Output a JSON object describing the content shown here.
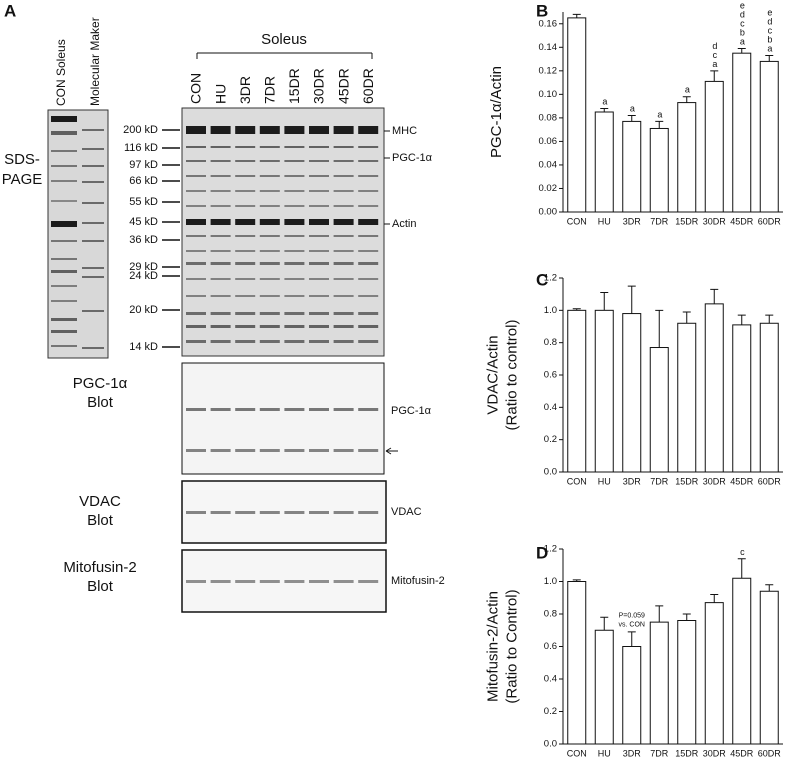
{
  "panel_labels": [
    "A",
    "B",
    "C",
    "D"
  ],
  "gel": {
    "lane_titles": [
      "CON Soleus",
      "Molecular Maker"
    ],
    "sds_label": [
      "SDS-",
      "PAGE"
    ],
    "marker_labels": [
      "200 kD",
      "116 kD",
      "97 kD",
      "66 kD",
      "55 kD",
      "45 kD",
      "36 kD",
      "29 kD",
      "24 kD",
      "20 kD",
      "14 kD"
    ],
    "group_label": "Soleus",
    "lanes": [
      "CON",
      "HU",
      "3DR",
      "7DR",
      "15DR",
      "30DR",
      "45DR",
      "60DR"
    ],
    "band_labels": [
      "MHC",
      "PGC-1α",
      "Actin"
    ],
    "blots": [
      {
        "title": [
          "PGC-1α",
          "Blot"
        ],
        "band": "PGC-1α"
      },
      {
        "title": [
          "VDAC",
          "Blot"
        ],
        "band": "VDAC"
      },
      {
        "title": [
          "Mitofusin-2",
          "Blot"
        ],
        "band": "Mitofusin-2"
      }
    ]
  },
  "chart_data": [
    {
      "type": "bar",
      "ylabel": [
        "PGC-1α/Actin"
      ],
      "color": "#ffffff",
      "categories": [
        "CON",
        "HU",
        "3DR",
        "7DR",
        "15DR",
        "30DR",
        "45DR",
        "60DR"
      ],
      "values": [
        0.165,
        0.085,
        0.077,
        0.071,
        0.093,
        0.111,
        0.135,
        0.128
      ],
      "error": [
        0.003,
        0.003,
        0.005,
        0.006,
        0.005,
        0.009,
        0.004,
        0.005
      ],
      "annotations": [
        null,
        "a",
        "a",
        "a",
        "a",
        "dca",
        "edcba",
        "edcba"
      ],
      "ylim": [
        0,
        0.17
      ],
      "yticks": [
        {
          "value": 0,
          "label": "0.00"
        },
        0.02,
        0.04,
        0.06,
        0.08,
        {
          "value": 0.1,
          "label": "0.10"
        },
        0.12,
        0.14,
        0.16
      ]
    },
    {
      "type": "bar",
      "ylabel": [
        "VDAC/Actin",
        "(Ratio to control)"
      ],
      "color": "#ffffff",
      "categories": [
        "CON",
        "HU",
        "3DR",
        "7DR",
        "15DR",
        "30DR",
        "45DR",
        "60DR"
      ],
      "values": [
        1.0,
        1.0,
        0.98,
        0.77,
        0.92,
        1.04,
        0.91,
        0.92
      ],
      "error": [
        0.01,
        0.11,
        0.17,
        0.23,
        0.07,
        0.09,
        0.06,
        0.05
      ],
      "ylim": [
        0,
        1.2
      ],
      "yticks": [
        {
          "value": 0,
          "label": "0.0"
        },
        0.2,
        0.4,
        0.6,
        0.8,
        {
          "value": 1,
          "label": "1.0"
        },
        1.2
      ]
    },
    {
      "type": "bar",
      "ylabel": [
        "Mitofusin-2/Actin",
        "(Ratio to Control)"
      ],
      "color": "#ffffff",
      "categories": [
        "CON",
        "HU",
        "3DR",
        "7DR",
        "15DR",
        "30DR",
        "45DR",
        "60DR"
      ],
      "values": [
        1.0,
        0.7,
        0.6,
        0.75,
        0.76,
        0.87,
        1.02,
        0.94
      ],
      "error": [
        0.01,
        0.08,
        0.09,
        0.1,
        0.04,
        0.05,
        0.12,
        0.04
      ],
      "annotations": [
        null,
        null,
        null,
        null,
        null,
        null,
        "c",
        null
      ],
      "note": [
        "P=0.059",
        "vs. CON"
      ],
      "ylim": [
        0,
        1.2
      ],
      "yticks": [
        {
          "value": 0,
          "label": "0.0"
        },
        0.2,
        0.4,
        0.6,
        0.8,
        {
          "value": 1,
          "label": "1.0"
        },
        1.2
      ]
    }
  ]
}
